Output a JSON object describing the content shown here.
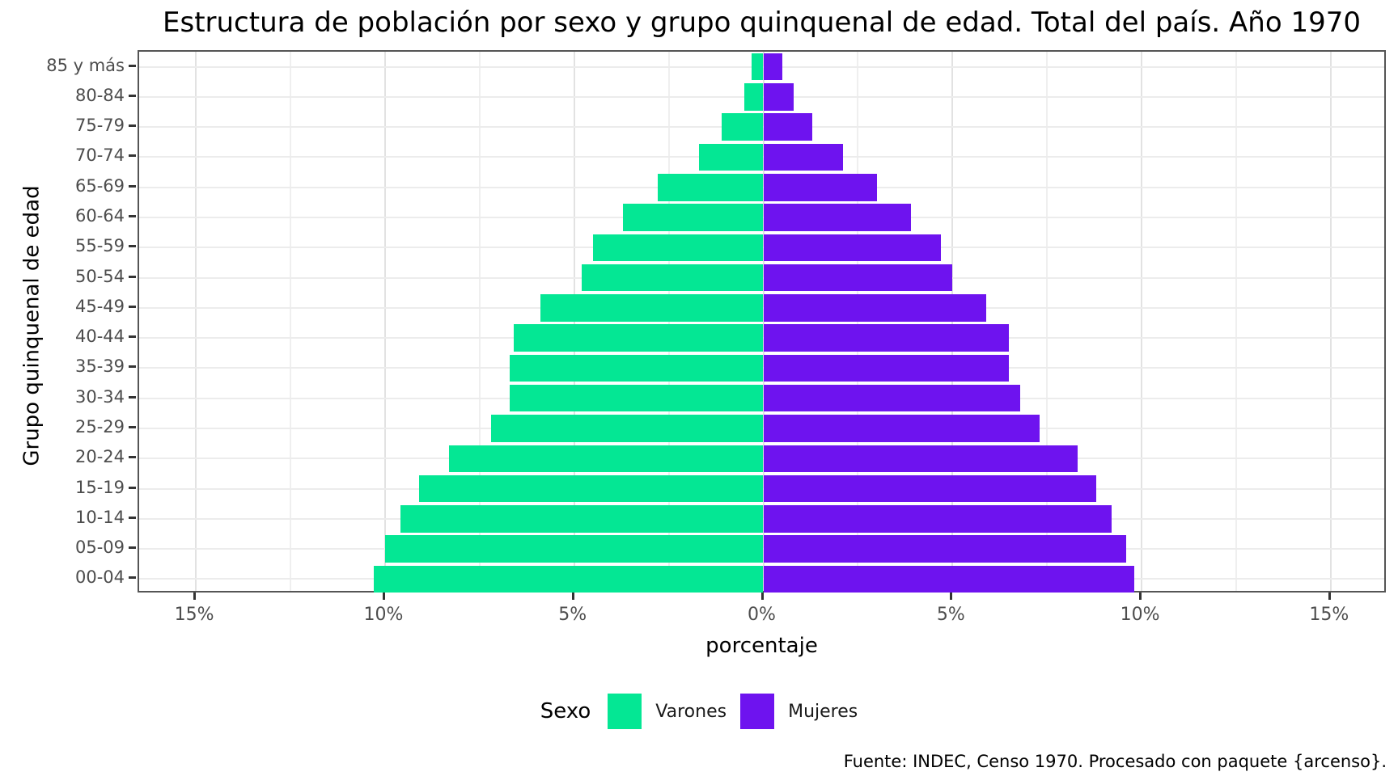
{
  "chart_data": {
    "type": "bar",
    "variant": "population-pyramid",
    "title": "Estructura de población por sexo y grupo quinquenal de edad. Total del país. Año 1970",
    "xlabel": "porcentaje",
    "ylabel": "Grupo quinquenal de edad",
    "caption": "Fuente: INDEC, Censo 1970. Procesado con paquete {arcenso}.",
    "legend": {
      "title": "Sexo",
      "position": "bottom",
      "entries": [
        {
          "label": "Varones",
          "color": "#04E794"
        },
        {
          "label": "Mujeres",
          "color": "#6E13EF"
        }
      ]
    },
    "categories_top_to_bottom": [
      "85 y más",
      "80-84",
      "75-79",
      "70-74",
      "65-69",
      "60-64",
      "55-59",
      "50-54",
      "45-49",
      "40-44",
      "35-39",
      "30-34",
      "25-29",
      "20-24",
      "15-19",
      "10-14",
      "05-09",
      "00-04"
    ],
    "series": [
      {
        "name": "Varones",
        "side": "left",
        "color": "#04E794",
        "values_pct": [
          0.3,
          0.5,
          1.1,
          1.7,
          2.8,
          3.7,
          4.5,
          4.8,
          5.9,
          6.6,
          6.7,
          6.7,
          7.2,
          8.3,
          9.1,
          9.6,
          10.0,
          10.3
        ]
      },
      {
        "name": "Mujeres",
        "side": "right",
        "color": "#6E13EF",
        "values_pct": [
          0.5,
          0.8,
          1.3,
          2.1,
          3.0,
          3.9,
          4.7,
          5.0,
          5.9,
          6.5,
          6.5,
          6.8,
          7.3,
          8.3,
          8.8,
          9.2,
          9.6,
          9.8
        ]
      }
    ],
    "x_axis": {
      "tick_labels": [
        "15%",
        "10%",
        "5%",
        "0%",
        "5%",
        "10%",
        "15%"
      ],
      "tick_values": [
        -15,
        -10,
        -5,
        0,
        5,
        10,
        15
      ],
      "minor_step": 2.5,
      "xlim": [
        -16.5,
        16.5
      ]
    },
    "grid": {
      "show": true,
      "major_color": "#e2e2e2",
      "minor_color": "#efefef"
    },
    "panel": {
      "background": "#ffffff",
      "border_color": "#555555"
    }
  }
}
